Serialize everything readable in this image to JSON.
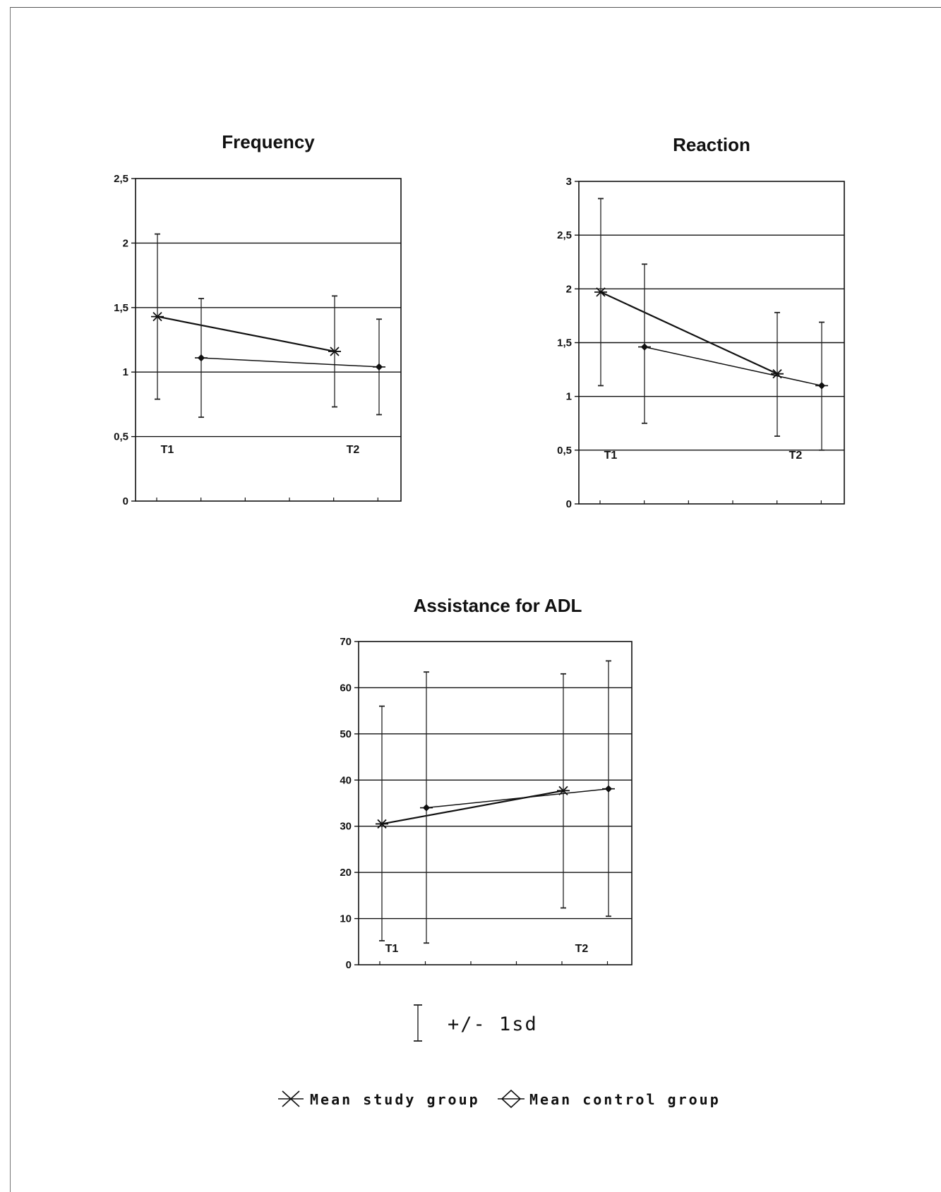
{
  "chart_data": [
    {
      "type": "line",
      "title": "Frequency",
      "ylim": [
        0,
        2.5
      ],
      "yticks": [
        "0",
        "0,5",
        "1",
        "1,5",
        "2",
        "2,5"
      ],
      "time_points": [
        "T1",
        "T2"
      ],
      "series": [
        {
          "name": "Mean study group",
          "marker": "asterisk",
          "values": [
            1.43,
            1.16
          ],
          "sd_low": [
            0.79,
            0.73
          ],
          "sd_high": [
            2.07,
            1.59
          ]
        },
        {
          "name": "Mean control group",
          "marker": "diamond",
          "values": [
            1.11,
            1.04
          ],
          "sd_low": [
            0.65,
            0.67
          ],
          "sd_high": [
            1.57,
            1.41
          ]
        }
      ]
    },
    {
      "type": "line",
      "title": "Reaction",
      "ylim": [
        0,
        3
      ],
      "yticks": [
        "0",
        "0,5",
        "1",
        "1,5",
        "2",
        "2,5",
        "3"
      ],
      "time_points": [
        "T1",
        "T2"
      ],
      "series": [
        {
          "name": "Mean study group",
          "marker": "asterisk",
          "values": [
            1.97,
            1.21
          ],
          "sd_low": [
            1.1,
            0.63
          ],
          "sd_high": [
            2.84,
            1.78
          ]
        },
        {
          "name": "Mean control group",
          "marker": "diamond",
          "values": [
            1.46,
            1.1
          ],
          "sd_low": [
            0.75,
            0.5
          ],
          "sd_high": [
            2.23,
            1.69
          ]
        }
      ]
    },
    {
      "type": "line",
      "title": "Assistance for ADL",
      "ylim": [
        0,
        70
      ],
      "yticks": [
        "0",
        "10",
        "20",
        "30",
        "40",
        "50",
        "60",
        "70"
      ],
      "time_points": [
        "T1",
        "T2"
      ],
      "series": [
        {
          "name": "Mean study group",
          "marker": "asterisk",
          "values": [
            30.5,
            37.7
          ],
          "sd_low": [
            5.2,
            12.3
          ],
          "sd_high": [
            56,
            63
          ]
        },
        {
          "name": "Mean control group",
          "marker": "diamond",
          "values": [
            34,
            38.1
          ],
          "sd_low": [
            4.7,
            10.5
          ],
          "sd_high": [
            63.4,
            65.8
          ]
        }
      ]
    }
  ],
  "legend": {
    "sd_label": "+/- 1sd",
    "items": [
      {
        "label": "Mean study group",
        "marker": "asterisk"
      },
      {
        "label": "Mean control group",
        "marker": "diamond"
      }
    ]
  }
}
